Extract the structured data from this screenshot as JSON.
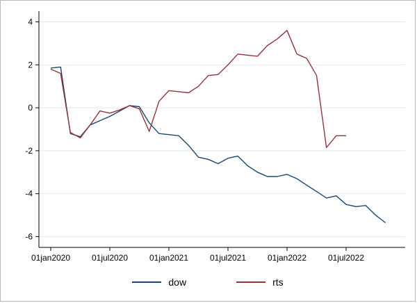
{
  "figure": {
    "background": "#ffffff",
    "border_color": "#b9b9b9",
    "axis_color": "#000000",
    "grid_color": "#dfe7ed",
    "tick_font_size": 12
  },
  "chart_data": {
    "type": "line",
    "title": "",
    "xlabel": "",
    "ylabel": "",
    "grid": true,
    "legend_position": "bottom",
    "ylim": [
      -6,
      4
    ],
    "y_ticks": [
      -6,
      -4,
      -2,
      0,
      2,
      4
    ],
    "y_tick_labels": [
      "-6",
      "-4",
      "-2",
      "0",
      "2",
      "4"
    ],
    "x_tick_labels": [
      "01jan2020",
      "01jul2020",
      "01jan2021",
      "01jul2021",
      "01jan2022",
      "01jul2022"
    ],
    "x_tick_months": [
      0,
      6,
      12,
      18,
      24,
      30
    ],
    "x_axis_note": "months since 01jan2020",
    "series": [
      {
        "name": "dow",
        "color": "#1a476f",
        "x_months": [
          0,
          1,
          2,
          3,
          4,
          5,
          6,
          7,
          8,
          9,
          10,
          11,
          12,
          13,
          14,
          15,
          16,
          17,
          18,
          19,
          20,
          21,
          22,
          23,
          24,
          25,
          26,
          27,
          28,
          29,
          30,
          31,
          32,
          33,
          34
        ],
        "values": [
          1.85,
          1.9,
          -1.2,
          -1.35,
          -0.8,
          -0.6,
          -0.4,
          -0.15,
          0.1,
          0.05,
          -0.7,
          -1.2,
          -1.25,
          -1.3,
          -1.75,
          -2.3,
          -2.4,
          -2.6,
          -2.35,
          -2.25,
          -2.7,
          -3.0,
          -3.2,
          -3.2,
          -3.1,
          -3.3,
          -3.6,
          -3.9,
          -4.2,
          -4.1,
          -4.5,
          -4.6,
          -4.55,
          -5.0,
          -5.35
        ]
      },
      {
        "name": "rts",
        "color": "#90353b",
        "x_months": [
          0,
          1,
          2,
          3,
          4,
          5,
          6,
          7,
          8,
          9,
          10,
          11,
          12,
          13,
          14,
          15,
          16,
          17,
          18,
          19,
          20,
          21,
          22,
          23,
          24,
          25,
          26,
          27,
          28,
          29,
          30
        ],
        "values": [
          1.8,
          1.6,
          -1.15,
          -1.4,
          -0.8,
          -0.15,
          -0.25,
          -0.1,
          0.1,
          -0.05,
          -1.1,
          0.3,
          0.8,
          0.75,
          0.7,
          1.0,
          1.5,
          1.55,
          2.0,
          2.5,
          2.45,
          2.4,
          2.9,
          3.2,
          3.6,
          2.5,
          2.3,
          1.5,
          -1.85,
          -1.3,
          -1.3
        ]
      }
    ]
  }
}
